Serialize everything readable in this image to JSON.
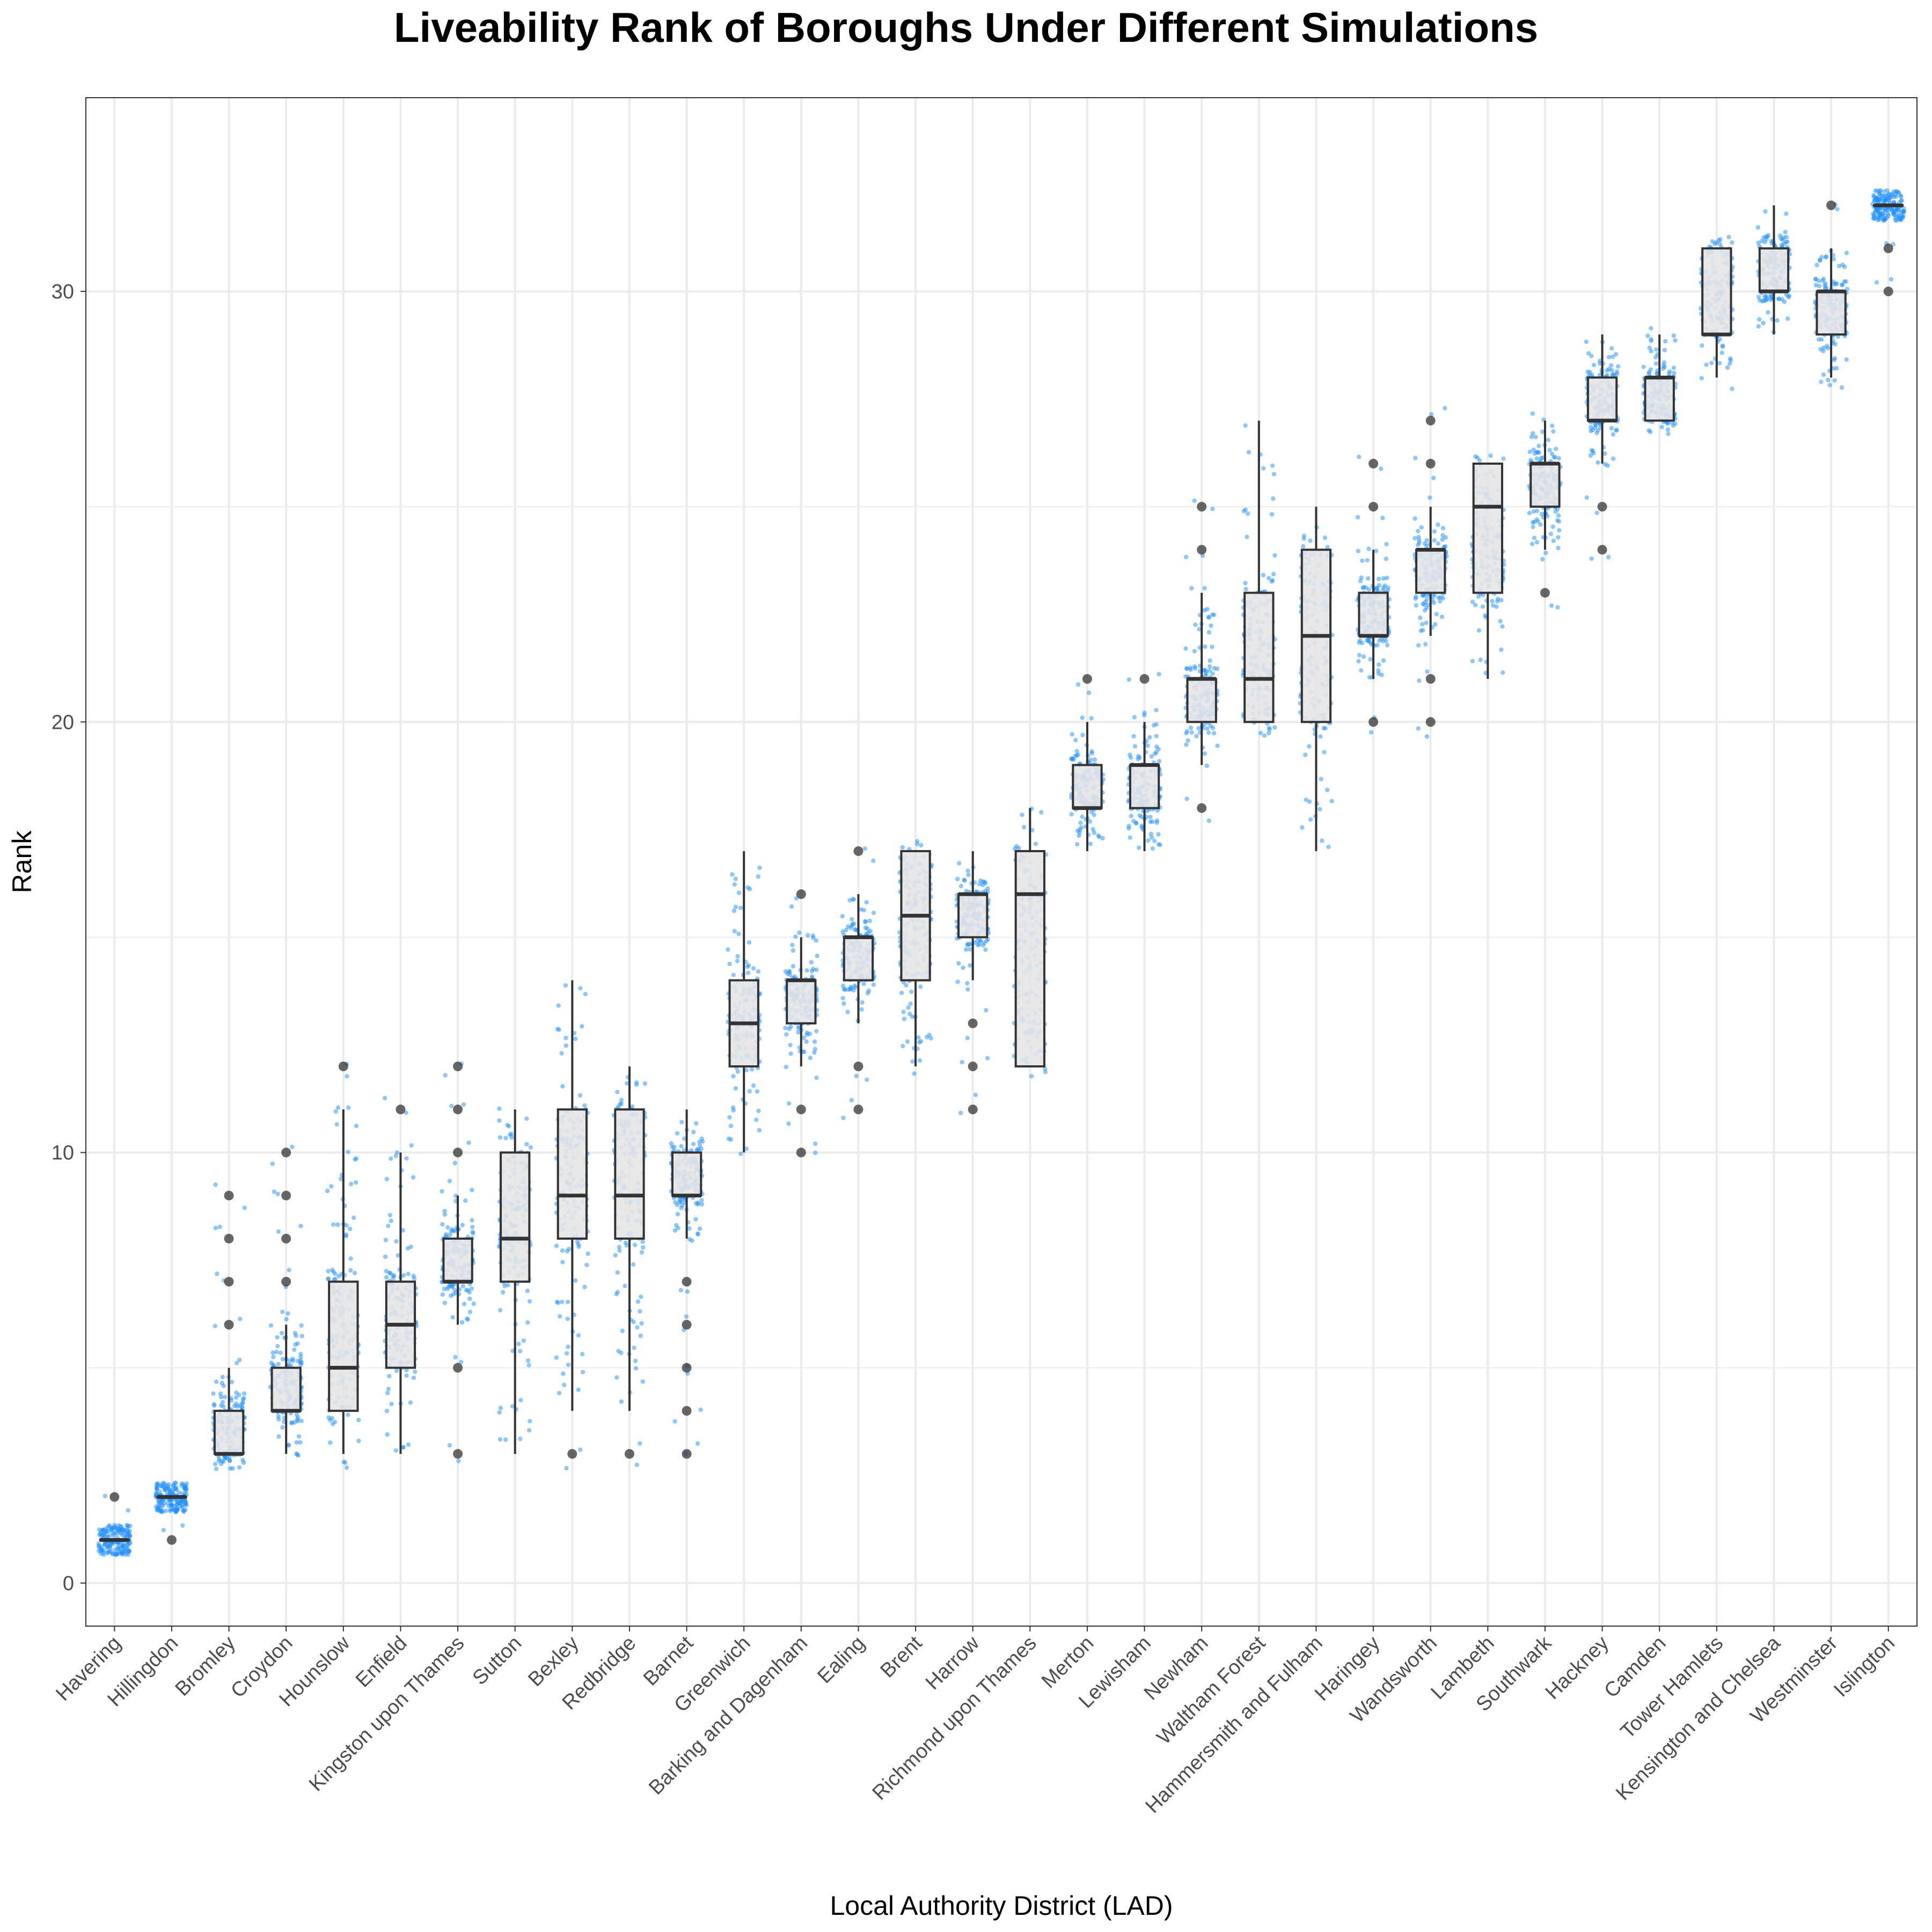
{
  "chart_data": {
    "type": "boxplot",
    "title": "Liveability Rank of Boroughs Under Different Simulations",
    "xlabel": "Local Authority District (LAD)",
    "ylabel": "Rank",
    "ylim": [
      -1,
      34.5
    ],
    "yticks": [
      0,
      10,
      20,
      30
    ],
    "ytick_labels": [
      "0",
      "10",
      "20",
      "30"
    ],
    "grid": true,
    "colors": {
      "points": "#1E90FF",
      "box_fill": "#E6E6E6",
      "box_line": "#333333",
      "grid": "#EBEBEB",
      "outlier": "#333333"
    },
    "categories": [
      "Havering",
      "Hillingdon",
      "Bromley",
      "Croydon",
      "Hounslow",
      "Enfield",
      "Kingston upon Thames",
      "Sutton",
      "Bexley",
      "Redbridge",
      "Barnet",
      "Greenwich",
      "Barking and Dagenham",
      "Ealing",
      "Brent",
      "Harrow",
      "Richmond upon Thames",
      "Merton",
      "Lewisham",
      "Newham",
      "Waltham Forest",
      "Hammersmith and Fulham",
      "Haringey",
      "Wandsworth",
      "Lambeth",
      "Southwark",
      "Hackney",
      "Camden",
      "Tower Hamlets",
      "Kensington and Chelsea",
      "Westminster",
      "Islington"
    ],
    "boxes": [
      {
        "name": "Havering",
        "min": 1,
        "q1": 1,
        "median": 1,
        "q3": 1,
        "max": 1,
        "outliers": [
          2
        ]
      },
      {
        "name": "Hillingdon",
        "min": 2,
        "q1": 2,
        "median": 2,
        "q3": 2,
        "max": 2,
        "outliers": [
          1
        ]
      },
      {
        "name": "Bromley",
        "min": 3,
        "q1": 3,
        "median": 3,
        "q3": 4,
        "max": 5,
        "outliers": [
          6,
          7,
          8,
          9
        ]
      },
      {
        "name": "Croydon",
        "min": 3,
        "q1": 4,
        "median": 4,
        "q3": 5,
        "max": 6,
        "outliers": [
          7,
          8,
          9,
          10
        ]
      },
      {
        "name": "Hounslow",
        "min": 3,
        "q1": 4,
        "median": 5,
        "q3": 7,
        "max": 11,
        "outliers": [
          12
        ]
      },
      {
        "name": "Enfield",
        "min": 3,
        "q1": 5,
        "median": 6,
        "q3": 7,
        "max": 10,
        "outliers": [
          11
        ]
      },
      {
        "name": "Kingston upon Thames",
        "min": 6,
        "q1": 7,
        "median": 7,
        "q3": 8,
        "max": 9,
        "outliers": [
          3,
          5,
          10,
          11,
          12
        ]
      },
      {
        "name": "Sutton",
        "min": 3,
        "q1": 7,
        "median": 8,
        "q3": 10,
        "max": 11,
        "outliers": []
      },
      {
        "name": "Bexley",
        "min": 4,
        "q1": 8,
        "median": 9,
        "q3": 11,
        "max": 14,
        "outliers": [
          3
        ]
      },
      {
        "name": "Redbridge",
        "min": 4,
        "q1": 8,
        "median": 9,
        "q3": 11,
        "max": 12,
        "outliers": [
          3
        ]
      },
      {
        "name": "Barnet",
        "min": 8,
        "q1": 9,
        "median": 9,
        "q3": 10,
        "max": 11,
        "outliers": [
          3,
          4,
          5,
          6,
          7
        ]
      },
      {
        "name": "Greenwich",
        "min": 10,
        "q1": 12,
        "median": 13,
        "q3": 14,
        "max": 17,
        "outliers": []
      },
      {
        "name": "Barking and Dagenham",
        "min": 12,
        "q1": 13,
        "median": 14,
        "q3": 14,
        "max": 15,
        "outliers": [
          10,
          11,
          16
        ]
      },
      {
        "name": "Ealing",
        "min": 13,
        "q1": 14,
        "median": 15,
        "q3": 15,
        "max": 16,
        "outliers": [
          11,
          12,
          17
        ]
      },
      {
        "name": "Brent",
        "min": 12,
        "q1": 14,
        "median": 15.5,
        "q3": 17,
        "max": 17,
        "outliers": []
      },
      {
        "name": "Harrow",
        "min": 14,
        "q1": 15,
        "median": 16,
        "q3": 16,
        "max": 17,
        "outliers": [
          11,
          12,
          13
        ]
      },
      {
        "name": "Richmond upon Thames",
        "min": 12,
        "q1": 12,
        "median": 16,
        "q3": 17,
        "max": 18,
        "outliers": []
      },
      {
        "name": "Merton",
        "min": 17,
        "q1": 18,
        "median": 18,
        "q3": 19,
        "max": 20,
        "outliers": [
          21
        ]
      },
      {
        "name": "Lewisham",
        "min": 17,
        "q1": 18,
        "median": 19,
        "q3": 19,
        "max": 20,
        "outliers": [
          21
        ]
      },
      {
        "name": "Newham",
        "min": 19,
        "q1": 20,
        "median": 21,
        "q3": 21,
        "max": 23,
        "outliers": [
          18,
          24,
          25
        ]
      },
      {
        "name": "Waltham Forest",
        "min": 20,
        "q1": 20,
        "median": 21,
        "q3": 23,
        "max": 27,
        "outliers": []
      },
      {
        "name": "Hammersmith and Fulham",
        "min": 17,
        "q1": 20,
        "median": 22,
        "q3": 24,
        "max": 25,
        "outliers": []
      },
      {
        "name": "Haringey",
        "min": 21,
        "q1": 22,
        "median": 22,
        "q3": 23,
        "max": 24,
        "outliers": [
          20,
          25,
          26
        ]
      },
      {
        "name": "Wandsworth",
        "min": 22,
        "q1": 23,
        "median": 24,
        "q3": 24,
        "max": 25,
        "outliers": [
          20,
          21,
          26,
          27
        ]
      },
      {
        "name": "Lambeth",
        "min": 21,
        "q1": 23,
        "median": 25,
        "q3": 26,
        "max": 26,
        "outliers": []
      },
      {
        "name": "Southwark",
        "min": 24,
        "q1": 25,
        "median": 26,
        "q3": 26,
        "max": 27,
        "outliers": [
          23
        ]
      },
      {
        "name": "Hackney",
        "min": 26,
        "q1": 27,
        "median": 27,
        "q3": 28,
        "max": 29,
        "outliers": [
          24,
          25
        ]
      },
      {
        "name": "Camden",
        "min": 27,
        "q1": 27,
        "median": 28,
        "q3": 28,
        "max": 29,
        "outliers": []
      },
      {
        "name": "Tower Hamlets",
        "min": 28,
        "q1": 29,
        "median": 29,
        "q3": 31,
        "max": 31,
        "outliers": []
      },
      {
        "name": "Kensington and Chelsea",
        "min": 29,
        "q1": 30,
        "median": 30,
        "q3": 31,
        "max": 32,
        "outliers": []
      },
      {
        "name": "Westminster",
        "min": 28,
        "q1": 29,
        "median": 30,
        "q3": 30,
        "max": 31,
        "outliers": [
          32
        ]
      },
      {
        "name": "Islington",
        "min": 32,
        "q1": 32,
        "median": 32,
        "q3": 32,
        "max": 32,
        "outliers": [
          30,
          31
        ]
      }
    ]
  }
}
